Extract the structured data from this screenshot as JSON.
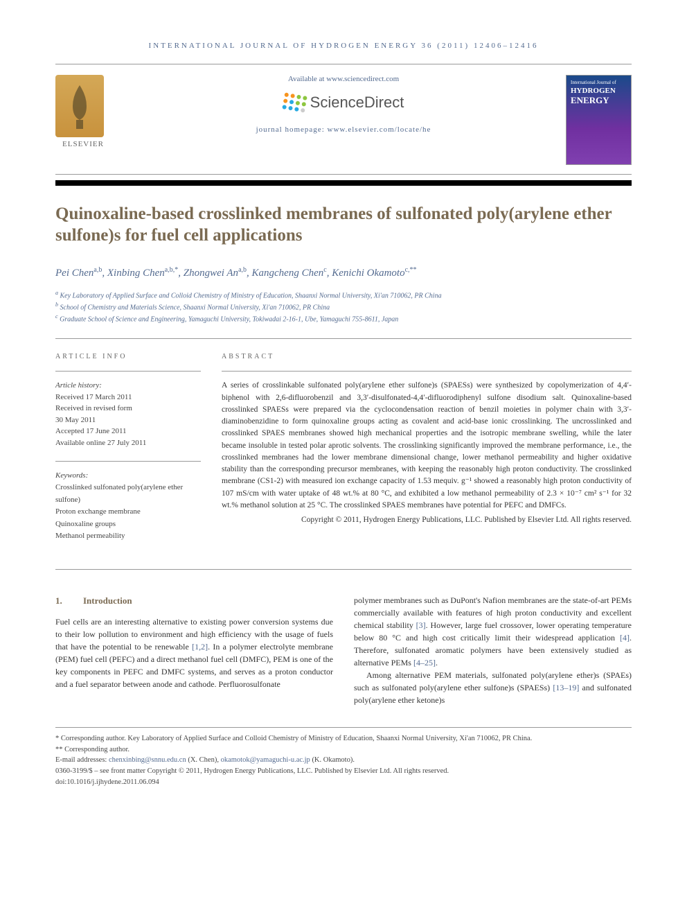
{
  "journal_header": "INTERNATIONAL JOURNAL OF HYDROGEN ENERGY 36 (2011) 12406–12416",
  "available_at": "Available at www.sciencedirect.com",
  "sd_brand": "ScienceDirect",
  "homepage": "journal homepage: www.elsevier.com/locate/he",
  "elsevier_label": "ELSEVIER",
  "cover": {
    "subtitle": "International Journal of",
    "line1": "HYDROGEN",
    "line2": "ENERGY"
  },
  "title": "Quinoxaline-based crosslinked membranes of sulfonated poly(arylene ether sulfone)s for fuel cell applications",
  "authors_html": "Pei Chen",
  "authors": [
    {
      "name": "Pei Chen",
      "sup": "a,b"
    },
    {
      "name": "Xinbing Chen",
      "sup": "a,b,*"
    },
    {
      "name": "Zhongwei An",
      "sup": "a,b"
    },
    {
      "name": "Kangcheng Chen",
      "sup": "c"
    },
    {
      "name": "Kenichi Okamoto",
      "sup": "c,**"
    }
  ],
  "affiliations": [
    {
      "sup": "a",
      "text": "Key Laboratory of Applied Surface and Colloid Chemistry of Ministry of Education, Shaanxi Normal University, Xi'an 710062, PR China"
    },
    {
      "sup": "b",
      "text": "School of Chemistry and Materials Science, Shaanxi Normal University, Xi'an 710062, PR China"
    },
    {
      "sup": "c",
      "text": "Graduate School of Science and Engineering, Yamaguchi University, Tokiwadai 2-16-1, Ube, Yamaguchi 755-8611, Japan"
    }
  ],
  "article_info_heading": "ARTICLE INFO",
  "abstract_heading": "ABSTRACT",
  "history_label": "Article history:",
  "history": [
    "Received 17 March 2011",
    "Received in revised form",
    "30 May 2011",
    "Accepted 17 June 2011",
    "Available online 27 July 2011"
  ],
  "keywords_label": "Keywords:",
  "keywords": [
    "Crosslinked sulfonated poly(arylene ether sulfone)",
    "Proton exchange membrane",
    "Quinoxaline groups",
    "Methanol permeability"
  ],
  "abstract": "A series of crosslinkable sulfonated poly(arylene ether sulfone)s (SPAESs) were synthesized by copolymerization of 4,4′-biphenol with 2,6-difluorobenzil and 3,3′-disulfonated-4,4′-difluorodiphenyl sulfone disodium salt. Quinoxaline-based crosslinked SPAESs were prepared via the cyclocondensation reaction of benzil moieties in polymer chain with 3,3′-diaminobenzidine to form quinoxaline groups acting as covalent and acid-base ionic crosslinking. The uncrosslinked and crosslinked SPAES membranes showed high mechanical properties and the isotropic membrane swelling, while the later became insoluble in tested polar aprotic solvents. The crosslinking significantly improved the membrane performance, i.e., the crosslinked membranes had the lower membrane dimensional change, lower methanol permeability and higher oxidative stability than the corresponding precursor membranes, with keeping the reasonably high proton conductivity. The crosslinked membrane (CS1-2) with measured ion exchange capacity of 1.53 mequiv. g⁻¹ showed a reasonably high proton conductivity of 107 mS/cm with water uptake of 48 wt.% at 80 °C, and exhibited a low methanol permeability of 2.3 × 10⁻⁷ cm² s⁻¹ for 32 wt.% methanol solution at 25 °C. The crosslinked SPAES membranes have potential for PEFC and DMFCs.",
  "copyright": "Copyright © 2011, Hydrogen Energy Publications, LLC. Published by Elsevier Ltd. All rights reserved.",
  "intro_heading_num": "1.",
  "intro_heading": "Introduction",
  "col1_p1_a": "Fuel cells are an interesting alternative to existing power conversion systems due to their low pollution to environment and high efficiency with the usage of fuels that have the potential to be renewable ",
  "col1_ref1": "[1,2]",
  "col1_p1_b": ". In a polymer electrolyte membrane (PEM) fuel cell (PEFC) and a direct methanol fuel cell (DMFC), PEM is one of the key components in PEFC and DMFC systems, and serves as a proton conductor and a fuel separator between anode and cathode. Perfluorosulfonate",
  "col2_p1_a": "polymer membranes such as DuPont's Nafion membranes are the state-of-art PEMs commercially available with features of high proton conductivity and excellent chemical stability ",
  "col2_ref1": "[3]",
  "col2_p1_b": ". However, large fuel crossover, lower operating temperature below 80 °C and high cost critically limit their widespread application ",
  "col2_ref2": "[4]",
  "col2_p1_c": ". Therefore, sulfonated aromatic polymers have been extensively studied as alternative PEMs ",
  "col2_ref3": "[4–25]",
  "col2_p1_d": ".",
  "col2_p2_a": "Among alternative PEM materials, sulfonated poly(arylene ether)s (SPAEs) such as sulfonated poly(arylene ether sulfone)s (SPAESs) ",
  "col2_ref4": "[13–19]",
  "col2_p2_b": " and sulfonated poly(arylene ether ketone)s",
  "footer": {
    "corr1": "* Corresponding author. Key Laboratory of Applied Surface and Colloid Chemistry of Ministry of Education, Shaanxi Normal University, Xi'an 710062, PR China.",
    "corr2": "** Corresponding author.",
    "email_label": "E-mail addresses: ",
    "email1": "chenxinbing@snnu.edu.cn",
    "email1_who": " (X. Chen), ",
    "email2": "okamotok@yamaguchi-u.ac.jp",
    "email2_who": " (K. Okamoto).",
    "issn": "0360-3199/$ – see front matter Copyright © 2011, Hydrogen Energy Publications, LLC. Published by Elsevier Ltd. All rights reserved.",
    "doi": "doi:10.1016/j.ijhydene.2011.06.094"
  },
  "colors": {
    "heading_olive": "#7a6a52",
    "link_blue": "#536a8f",
    "sd_orange": "#f7941e",
    "sd_green": "#8dc63f",
    "sd_blue": "#27aae1"
  }
}
